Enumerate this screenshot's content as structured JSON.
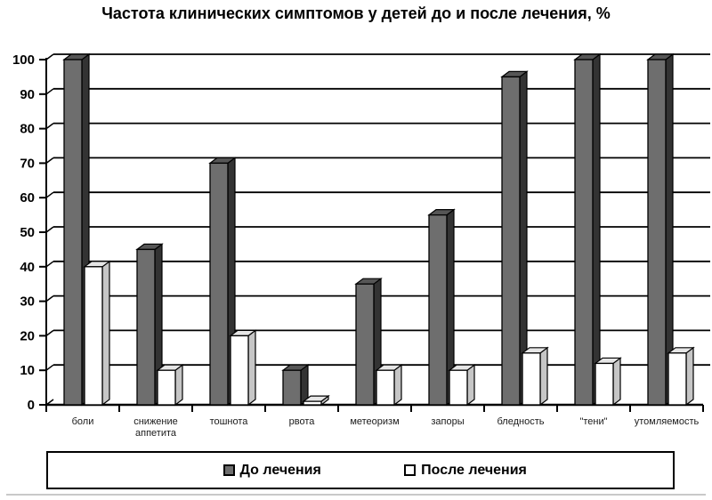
{
  "title": "Частота клинических симптомов у детей до и после лечения, %",
  "legend": {
    "before_label": "До лечения",
    "after_label": "После лечения"
  },
  "chart_data": {
    "type": "bar",
    "style": "3d-column",
    "title": "Частота клинических симптомов у детей до и после лечения, %",
    "xlabel": "",
    "ylabel": "",
    "ylim": [
      0,
      100
    ],
    "yticks": [
      0,
      10,
      20,
      30,
      40,
      50,
      60,
      70,
      80,
      90,
      100
    ],
    "grid": true,
    "legend_position": "bottom",
    "categories": [
      "боли",
      "снижение аппетита",
      "тошнота",
      "рвота",
      "метеоризм",
      "запоры",
      "бледность",
      "\"тени\"",
      "утомляемость"
    ],
    "series": [
      {
        "name": "До лечения",
        "values": [
          100,
          45,
          70,
          10,
          35,
          55,
          95,
          100,
          100
        ]
      },
      {
        "name": "После лечения",
        "values": [
          40,
          10,
          20,
          1,
          10,
          10,
          15,
          12,
          15
        ]
      }
    ],
    "colors": {
      "grid": "#000000",
      "before": {
        "front": "#6e6e6e",
        "top": "#565656",
        "side": "#333333"
      },
      "after": {
        "front": "#ffffff",
        "top": "#e6e6e6",
        "side": "#c6c6c6"
      }
    }
  }
}
